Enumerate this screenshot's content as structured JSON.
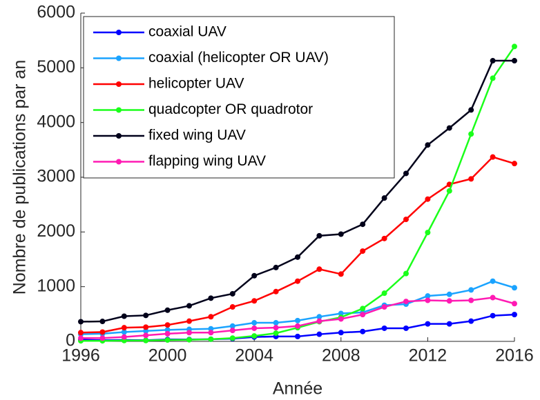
{
  "chart_data": {
    "type": "line",
    "x_label": "Année",
    "y_label": "Nombre de publications par an",
    "x": [
      1996,
      1997,
      1998,
      1999,
      2000,
      2001,
      2002,
      2003,
      2004,
      2005,
      2006,
      2007,
      2008,
      2009,
      2010,
      2011,
      2012,
      2013,
      2014,
      2015,
      2016
    ],
    "series": [
      {
        "name": "coaxial UAV",
        "color": "#0000ff",
        "values": [
          30,
          20,
          25,
          20,
          35,
          35,
          40,
          50,
          80,
          90,
          90,
          130,
          160,
          180,
          240,
          240,
          320,
          320,
          370,
          470,
          490
        ]
      },
      {
        "name": "coaxial (helicopter OR UAV)",
        "color": "#1aa3ff",
        "values": [
          130,
          140,
          170,
          190,
          210,
          220,
          230,
          280,
          340,
          340,
          380,
          450,
          510,
          530,
          660,
          680,
          830,
          860,
          940,
          1100,
          980
        ]
      },
      {
        "name": "helicopter UAV",
        "color": "#ff0000",
        "values": [
          160,
          170,
          250,
          260,
          300,
          370,
          450,
          630,
          740,
          910,
          1100,
          1320,
          1230,
          1650,
          1880,
          2230,
          2600,
          2870,
          2970,
          3370,
          3250
        ]
      },
      {
        "name": "quadcopter OR quadrotor",
        "color": "#1aff1a",
        "values": [
          10,
          10,
          15,
          15,
          25,
          30,
          40,
          60,
          100,
          150,
          250,
          360,
          440,
          600,
          880,
          1240,
          1990,
          2750,
          3790,
          4810,
          5390
        ]
      },
      {
        "name": "fixed wing UAV",
        "color": "#00001a",
        "values": [
          360,
          365,
          460,
          475,
          570,
          650,
          790,
          870,
          1200,
          1350,
          1540,
          1930,
          1960,
          2140,
          2620,
          3070,
          3590,
          3900,
          4230,
          5130,
          5130
        ]
      },
      {
        "name": "flapping wing UAV",
        "color": "#ff1ab3",
        "values": [
          60,
          60,
          80,
          110,
          140,
          160,
          160,
          200,
          240,
          250,
          280,
          370,
          410,
          490,
          630,
          730,
          750,
          740,
          750,
          800,
          690
        ]
      }
    ],
    "xlim": [
      1996,
      2016
    ],
    "xticks": [
      1996,
      2000,
      2004,
      2008,
      2012,
      2016
    ],
    "ylim": [
      0,
      6000
    ],
    "yticks": [
      0,
      1000,
      2000,
      3000,
      4000,
      5000,
      6000
    ],
    "grid": false,
    "legend": "upper left"
  }
}
